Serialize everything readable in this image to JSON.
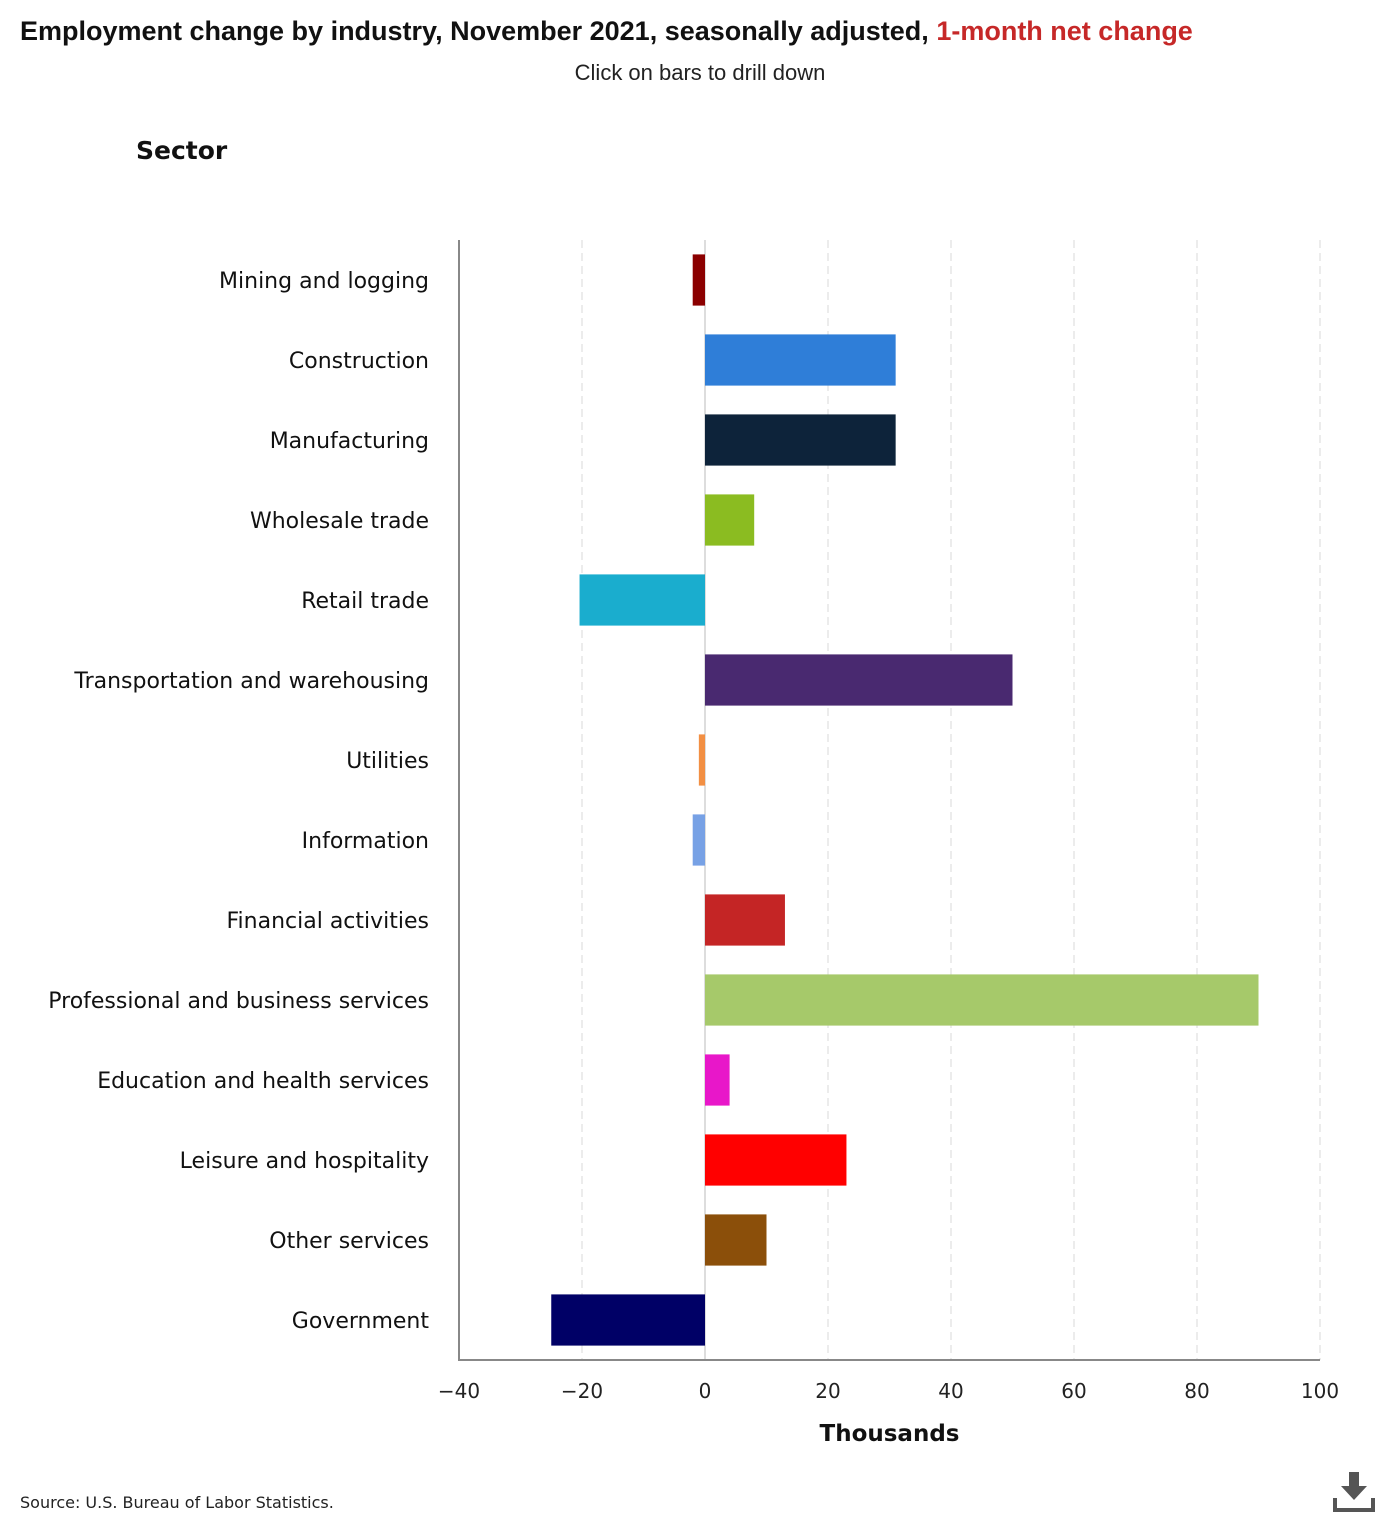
{
  "header": {
    "title_main": "Employment change by industry, November 2021, seasonally adjusted, ",
    "title_highlight": "1-month net change",
    "subtitle": "Click on bars to drill down",
    "axis_heading": "Sector"
  },
  "footer": {
    "source": "Source: U.S. Bureau of Labor Statistics.",
    "download_icon": "download-icon"
  },
  "colors": {
    "highlight": "#c62828",
    "grid": "#d9d9d9",
    "axis": "#888888"
  },
  "chart_data": {
    "type": "bar",
    "orientation": "horizontal",
    "title": "Employment change by industry, November 2021, seasonally adjusted, 1-month net change",
    "ylabel": "Sector",
    "xlabel": "Thousands",
    "xlim": [
      -40,
      100
    ],
    "xticks": [
      -40,
      -20,
      0,
      20,
      40,
      60,
      80,
      100
    ],
    "xtick_labels": [
      "−40",
      "−20",
      "0",
      "20",
      "40",
      "60",
      "80",
      "100"
    ],
    "grid": true,
    "categories": [
      "Mining and logging",
      "Construction",
      "Manufacturing",
      "Wholesale trade",
      "Retail trade",
      "Transportation and warehousing",
      "Utilities",
      "Information",
      "Financial activities",
      "Professional and business services",
      "Education and health services",
      "Leisure and hospitality",
      "Other services",
      "Government"
    ],
    "values": [
      -2,
      31,
      31,
      8,
      -20.4,
      50,
      -1,
      -2,
      13,
      90,
      4,
      23,
      10,
      -25
    ],
    "bar_colors": [
      "#8b0000",
      "#2f7ed8",
      "#0d233a",
      "#8bbc21",
      "#1aadce",
      "#492970",
      "#f28f43",
      "#77a1e5",
      "#c42525",
      "#a6c96a",
      "#e817c9",
      "#ff0000",
      "#8b4f0a",
      "#000066"
    ]
  }
}
